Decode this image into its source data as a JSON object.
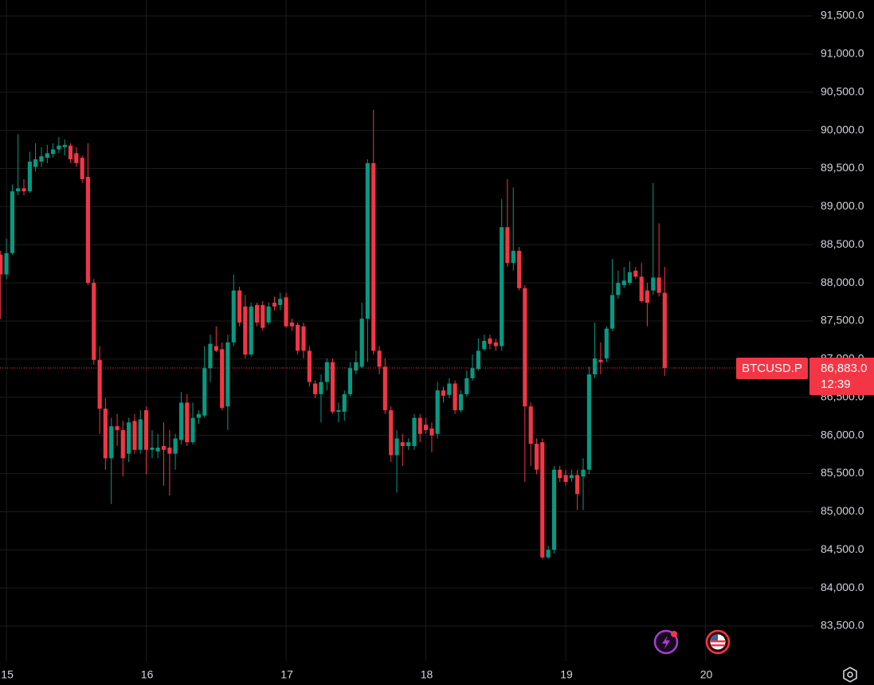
{
  "chart_data": {
    "type": "candlestick",
    "up_color": "#089981",
    "down_color": "#f23645",
    "grid": true,
    "xlim": [
      14.954,
      20.766
    ],
    "xticks": [
      15,
      16,
      17,
      18,
      19,
      20
    ],
    "ylim": [
      83040,
      91709
    ],
    "yticks": [
      {
        "value": 83500,
        "label": "83,500.0"
      },
      {
        "value": 84000,
        "label": "84,000.0"
      },
      {
        "value": 84500,
        "label": "84,500.0"
      },
      {
        "value": 85000,
        "label": "85,000.0"
      },
      {
        "value": 85500,
        "label": "85,500.0"
      },
      {
        "value": 86000,
        "label": "86,000.0"
      },
      {
        "value": 86500,
        "label": "86,500.0"
      },
      {
        "value": 87000,
        "label": "87,000.0"
      },
      {
        "value": 87500,
        "label": "87,500.0"
      },
      {
        "value": 88000,
        "label": "88,000.0"
      },
      {
        "value": 88500,
        "label": "88,500.0"
      },
      {
        "value": 89000,
        "label": "89,000.0"
      },
      {
        "value": 89500,
        "label": "89,500.0"
      },
      {
        "value": 90000,
        "label": "90,000.0"
      },
      {
        "value": 90500,
        "label": "90,500.0"
      },
      {
        "value": 91000,
        "label": "91,000.0"
      },
      {
        "value": 91500,
        "label": "91,500.0"
      }
    ],
    "price_label": {
      "symbol": "BTCUSD.P",
      "value": 86883,
      "label": "86,883.0",
      "countdown": "12:39",
      "color": "#f23645"
    },
    "x": [
      14.958,
      15,
      15.042,
      15.083,
      15.125,
      15.167,
      15.208,
      15.25,
      15.292,
      15.333,
      15.375,
      15.417,
      15.458,
      15.5,
      15.542,
      15.583,
      15.625,
      15.667,
      15.708,
      15.75,
      15.792,
      15.833,
      15.875,
      15.917,
      15.958,
      16,
      16.042,
      16.083,
      16.125,
      16.167,
      16.208,
      16.25,
      16.292,
      16.333,
      16.375,
      16.417,
      16.458,
      16.5,
      16.542,
      16.583,
      16.625,
      16.667,
      16.708,
      16.75,
      16.792,
      16.833,
      16.875,
      16.917,
      16.958,
      17,
      17.042,
      17.083,
      17.125,
      17.167,
      17.208,
      17.25,
      17.292,
      17.333,
      17.375,
      17.417,
      17.458,
      17.5,
      17.542,
      17.583,
      17.625,
      17.667,
      17.708,
      17.75,
      17.792,
      17.833,
      17.875,
      17.917,
      17.958,
      18,
      18.042,
      18.083,
      18.125,
      18.167,
      18.208,
      18.25,
      18.292,
      18.333,
      18.375,
      18.417,
      18.458,
      18.5,
      18.542,
      18.583,
      18.625,
      18.667,
      18.708,
      18.75,
      18.792,
      18.833,
      18.875,
      18.917,
      18.958,
      19,
      19.042,
      19.083,
      19.125,
      19.167,
      19.208,
      19.25,
      19.292,
      19.333,
      19.375,
      19.417,
      19.458,
      19.5,
      19.542,
      19.583,
      19.625,
      19.667,
      19.708
    ],
    "open": [
      88370,
      88110,
      88390,
      89200,
      89240,
      89200,
      89520,
      89590,
      89640,
      89690,
      89750,
      89780,
      89800,
      89700,
      89640,
      89390,
      88000,
      86990,
      86350,
      85700,
      86120,
      86070,
      85760,
      86190,
      85810,
      86330,
      85810,
      85790,
      85860,
      85840,
      85760,
      85940,
      86430,
      85910,
      86230,
      86260,
      86880,
      87170,
      87130,
      86380,
      87220,
      87900,
      87690,
      87060,
      87710,
      87710,
      87480,
      87740,
      87710,
      87810,
      87480,
      87450,
      87430,
      87110,
      86680,
      86540,
      86700,
      86960,
      86310,
      86310,
      86540,
      86850,
      86900,
      87530,
      89570,
      87110,
      86900,
      86330,
      85740,
      85910,
      85860,
      85860,
      86230,
      86140,
      86090,
      86020,
      86590,
      86530,
      86680,
      86330,
      86540,
      86750,
      86870,
      87130,
      87270,
      87220,
      87170,
      88730,
      88260,
      88420,
      87930,
      86380,
      85890,
      85910,
      84400,
      84500,
      85550,
      85480,
      85440,
      85480,
      85460,
      85550,
      86800,
      86990,
      87010,
      87400,
      87840,
      87970,
      88000,
      88160,
      88080,
      87900,
      87900,
      88070,
      87870
    ],
    "high": [
      88420,
      88580,
      89290,
      89950,
      89360,
      89720,
      89830,
      89780,
      89810,
      89830,
      89910,
      89880,
      89830,
      89780,
      89670,
      89830,
      88050,
      87170,
      86490,
      86230,
      86280,
      86190,
      86230,
      86280,
      86330,
      86380,
      86070,
      86020,
      86170,
      86070,
      86020,
      86570,
      86540,
      86430,
      86330,
      87170,
      87320,
      87430,
      87220,
      87320,
      88110,
      87950,
      87840,
      87740,
      87740,
      87760,
      87740,
      87820,
      87870,
      87870,
      87530,
      87480,
      87480,
      87170,
      86720,
      86800,
      87010,
      87010,
      86430,
      86590,
      86960,
      87110,
      87740,
      89620,
      90270,
      87170,
      87010,
      86380,
      86070,
      86020,
      85960,
      86280,
      86280,
      86230,
      86170,
      86700,
      86640,
      86750,
      86720,
      86590,
      86850,
      87060,
      87270,
      87320,
      87320,
      87270,
      89100,
      89360,
      89250,
      88470,
      87970,
      86430,
      85960,
      85960,
      84550,
      85600,
      85600,
      85550,
      85550,
      85550,
      85700,
      86900,
      87480,
      87220,
      87430,
      88310,
      88160,
      88210,
      88280,
      88210,
      88260,
      88000,
      89310,
      88780,
      88210
    ],
    "low": [
      87530,
      88050,
      88370,
      89150,
      89150,
      89180,
      89460,
      89520,
      89570,
      89640,
      89700,
      89670,
      89570,
      89520,
      89310,
      87970,
      86930,
      86020,
      85550,
      85100,
      85860,
      85460,
      85650,
      85760,
      85760,
      85490,
      85700,
      85700,
      85340,
      85210,
      85550,
      85880,
      85860,
      85880,
      86150,
      86230,
      86700,
      87090,
      86330,
      86070,
      87170,
      87430,
      87010,
      87030,
      87430,
      87370,
      87450,
      87640,
      87640,
      87410,
      87370,
      87060,
      87010,
      86640,
      86490,
      86170,
      86590,
      86280,
      86170,
      86190,
      86510,
      86800,
      86880,
      86960,
      87060,
      86800,
      86280,
      85650,
      85250,
      85600,
      85810,
      85810,
      85910,
      86020,
      85780,
      85960,
      86430,
      86490,
      86280,
      86300,
      86510,
      86720,
      86850,
      87110,
      87130,
      87110,
      87110,
      88210,
      88160,
      87900,
      85390,
      85600,
      85490,
      84380,
      84380,
      84450,
      85390,
      85340,
      85390,
      85020,
      85020,
      85490,
      86750,
      86800,
      86960,
      87370,
      87790,
      87930,
      87970,
      88050,
      87740,
      87430,
      87840,
      87820,
      86780
    ],
    "close": [
      88110,
      88390,
      89200,
      89240,
      89200,
      89590,
      89620,
      89660,
      89700,
      89750,
      89800,
      89810,
      89620,
      89570,
      89360,
      88000,
      86990,
      86350,
      85700,
      86120,
      86070,
      85700,
      86170,
      85810,
      86210,
      85810,
      85840,
      85840,
      85810,
      85760,
      85960,
      86430,
      85910,
      86230,
      86280,
      86880,
      87200,
      87110,
      86360,
      87220,
      87900,
      87480,
      87060,
      87690,
      87480,
      87410,
      87690,
      87690,
      87790,
      87430,
      87430,
      87110,
      87110,
      86700,
      86540,
      86700,
      86960,
      86310,
      86330,
      86540,
      86880,
      86960,
      87530,
      89570,
      87110,
      86900,
      86330,
      85740,
      85960,
      85860,
      85910,
      86230,
      86020,
      86070,
      86000,
      86590,
      86520,
      86680,
      86330,
      86540,
      86750,
      86880,
      87110,
      87240,
      87200,
      87170,
      88730,
      88260,
      88420,
      87930,
      86380,
      85890,
      85550,
      84400,
      84500,
      85550,
      85440,
      85390,
      85480,
      85230,
      85550,
      86800,
      87010,
      86960,
      87400,
      87840,
      88000,
      88030,
      88140,
      88080,
      87760,
      87740,
      88070,
      87870,
      86883
    ]
  }
}
